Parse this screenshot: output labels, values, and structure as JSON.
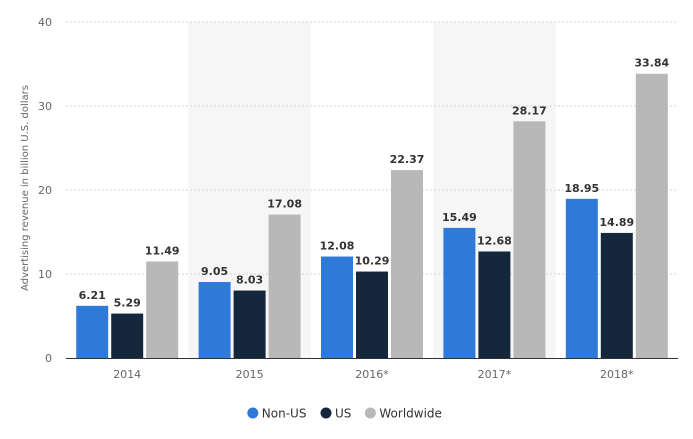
{
  "chart_data": {
    "type": "bar",
    "title": "",
    "xlabel": "",
    "ylabel": "Advertising revenue in billion U.S. dollars",
    "categories": [
      "2014",
      "2015",
      "2016*",
      "2017*",
      "2018*"
    ],
    "series": [
      {
        "name": "Non-US",
        "color": "#2f7ad8",
        "values": [
          6.21,
          9.05,
          12.08,
          15.49,
          18.95
        ]
      },
      {
        "name": "US",
        "color": "#14273d",
        "values": [
          5.29,
          8.03,
          10.29,
          12.68,
          14.89
        ]
      },
      {
        "name": "Worldwide",
        "color": "#b8b8b8",
        "values": [
          11.49,
          17.08,
          22.37,
          28.17,
          33.84
        ]
      }
    ],
    "ylim": [
      0,
      40
    ],
    "yticks": [
      0,
      10,
      20,
      30,
      40
    ],
    "grid": true,
    "legend_position": "bottom"
  }
}
